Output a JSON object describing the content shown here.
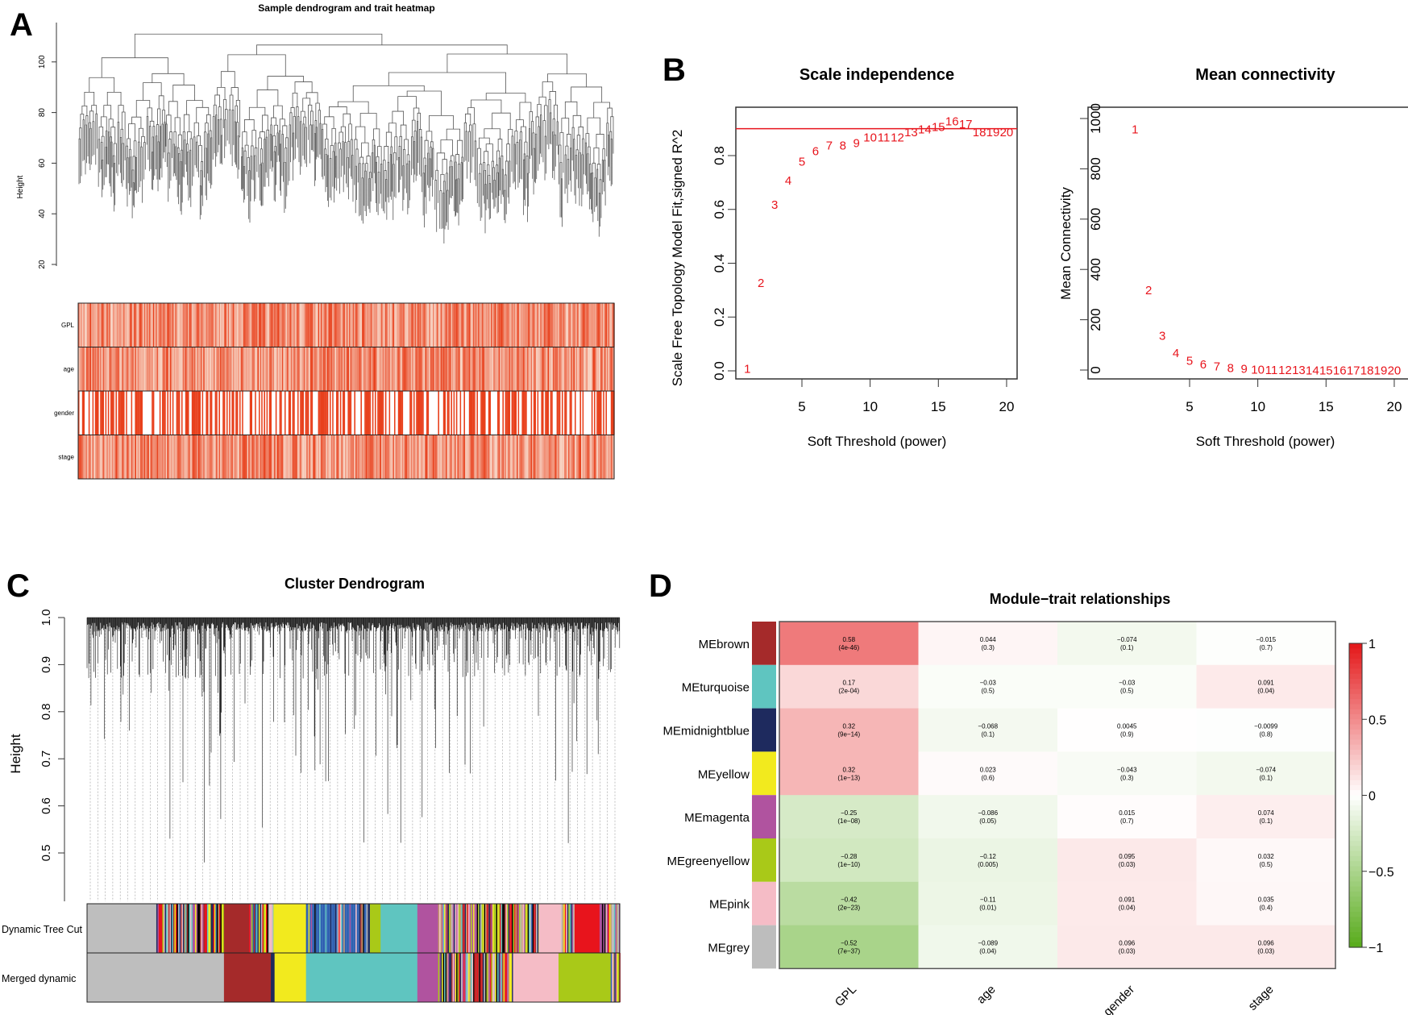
{
  "panel_labels": [
    "A",
    "B",
    "C",
    "D"
  ],
  "chart_data": [
    {
      "type": "dendrogram-heatmap",
      "title": "Sample dendrogram and trait heatmap",
      "ylabel": "Height",
      "yticks": [
        "20",
        "40",
        "60",
        "80",
        "100"
      ],
      "ylim": [
        15,
        112
      ],
      "trait_rows": [
        "GPL",
        "age",
        "gender",
        "stage"
      ]
    },
    {
      "type": "scatter",
      "title": "Scale independence",
      "xlabel": "Soft Threshold (power)",
      "ylabel": "Scale Free Topology Model Fit,signed R^2",
      "xticks": [
        "5",
        "10",
        "15",
        "20"
      ],
      "yticks": [
        "0.0",
        "0.2",
        "0.4",
        "0.6",
        "0.8"
      ],
      "threshold_line": 0.9,
      "x": [
        1,
        2,
        3,
        4,
        5,
        6,
        7,
        8,
        9,
        10,
        11,
        12,
        13,
        14,
        15,
        16,
        17,
        18,
        19,
        20
      ],
      "y": [
        0.01,
        0.33,
        0.62,
        0.71,
        0.78,
        0.82,
        0.84,
        0.84,
        0.85,
        0.87,
        0.87,
        0.87,
        0.89,
        0.9,
        0.91,
        0.93,
        0.92,
        0.89,
        0.89,
        0.89
      ],
      "point_color": "#e8141c"
    },
    {
      "type": "scatter",
      "title": "Mean connectivity",
      "xlabel": "Soft Threshold (power)",
      "ylabel": "Mean Connectivity",
      "xticks": [
        "5",
        "10",
        "15",
        "20"
      ],
      "yticks": [
        "0",
        "200",
        "400",
        "600",
        "800",
        "1000"
      ],
      "x": [
        1,
        2,
        3,
        4,
        5,
        6,
        7,
        8,
        9,
        10,
        11,
        12,
        13,
        14,
        15,
        16,
        17,
        18,
        19,
        20
      ],
      "y": [
        960,
        320,
        140,
        70,
        40,
        25,
        18,
        12,
        8,
        5,
        4,
        3,
        3,
        2,
        2,
        2,
        1,
        1,
        1,
        1
      ],
      "point_color": "#e8141c"
    },
    {
      "type": "dendrogram",
      "title": "Cluster Dendrogram",
      "ylabel": "Height",
      "yticks": [
        "0.5",
        "0.6",
        "0.7",
        "0.8",
        "0.9",
        "1.0"
      ],
      "color_rows": [
        {
          "label": "Dynamic Tree Cut",
          "segments": [
            {
              "color": "grey",
              "frac": 0.13
            },
            {
              "color": "mixed",
              "frac": 0.127
            },
            {
              "color": "brown",
              "frac": 0.047
            },
            {
              "color": "mixed",
              "frac": 0.046
            },
            {
              "color": "yellow",
              "frac": 0.061
            },
            {
              "color": "mixed-blue",
              "frac": 0.12
            },
            {
              "color": "greenyellow",
              "frac": 0.02
            },
            {
              "color": "turquoise",
              "frac": 0.069
            },
            {
              "color": "magenta",
              "frac": 0.039
            },
            {
              "color": "mixed",
              "frac": 0.189
            },
            {
              "color": "pink",
              "frac": 0.042
            },
            {
              "color": "mixed",
              "frac": 0.025
            },
            {
              "color": "red",
              "frac": 0.047
            },
            {
              "color": "mixed",
              "frac": 0.038
            }
          ]
        },
        {
          "label": "Merged dynamic",
          "segments": [
            {
              "color": "grey",
              "frac": 0.257
            },
            {
              "color": "brown",
              "frac": 0.088
            },
            {
              "color": "midnightblue",
              "frac": 0.007
            },
            {
              "color": "yellow",
              "frac": 0.059
            },
            {
              "color": "turquoise",
              "frac": 0.209
            },
            {
              "color": "magenta",
              "frac": 0.039
            },
            {
              "color": "mixed",
              "frac": 0.142
            },
            {
              "color": "pink",
              "frac": 0.084
            },
            {
              "color": "greenyellow",
              "frac": 0.098
            },
            {
              "color": "mixed",
              "frac": 0.017
            }
          ]
        }
      ]
    },
    {
      "type": "heatmap",
      "title": "Module−trait relationships",
      "columns": [
        "GPL",
        "age",
        "gender",
        "stage"
      ],
      "rows": [
        {
          "module": "MEbrown",
          "color": "#a52a2a",
          "cells": [
            [
              "0.58",
              "(4e-46)"
            ],
            [
              "0.044",
              "(0.3)"
            ],
            [
              "−0.074",
              "(0.1)"
            ],
            [
              "−0.015",
              "(0.7)"
            ]
          ],
          "values": [
            0.58,
            0.044,
            -0.074,
            -0.015
          ]
        },
        {
          "module": "MEturquoise",
          "color": "#5fc5c0",
          "cells": [
            [
              "0.17",
              "(2e-04)"
            ],
            [
              "−0.03",
              "(0.5)"
            ],
            [
              "−0.03",
              "(0.5)"
            ],
            [
              "0.091",
              "(0.04)"
            ]
          ],
          "values": [
            0.17,
            -0.03,
            -0.03,
            0.091
          ]
        },
        {
          "module": "MEmidnightblue",
          "color": "#1e2a5e",
          "cells": [
            [
              "0.32",
              "(9e−14)"
            ],
            [
              "−0.068",
              "(0.1)"
            ],
            [
              "0.0045",
              "(0.9)"
            ],
            [
              "−0.0099",
              "(0.8)"
            ]
          ],
          "values": [
            0.32,
            -0.068,
            0.0045,
            -0.0099
          ]
        },
        {
          "module": "MEyellow",
          "color": "#f2ea1e",
          "cells": [
            [
              "0.32",
              "(1e−13)"
            ],
            [
              "0.023",
              "(0.6)"
            ],
            [
              "−0.043",
              "(0.3)"
            ],
            [
              "−0.074",
              "(0.1)"
            ]
          ],
          "values": [
            0.32,
            0.023,
            -0.043,
            -0.074
          ]
        },
        {
          "module": "MEmagenta",
          "color": "#b0539f",
          "cells": [
            [
              "−0.25",
              "(1e−08)"
            ],
            [
              "−0.086",
              "(0.05)"
            ],
            [
              "0.015",
              "(0.7)"
            ],
            [
              "0.074",
              "(0.1)"
            ]
          ],
          "values": [
            -0.25,
            -0.086,
            0.015,
            0.074
          ]
        },
        {
          "module": "MEgreenyellow",
          "color": "#a9c918",
          "cells": [
            [
              "−0.28",
              "(1e−10)"
            ],
            [
              "−0.12",
              "(0.005)"
            ],
            [
              "0.095",
              "(0.03)"
            ],
            [
              "0.032",
              "(0.5)"
            ]
          ],
          "values": [
            -0.28,
            -0.12,
            0.095,
            0.032
          ]
        },
        {
          "module": "MEpink",
          "color": "#f5bcc6",
          "cells": [
            [
              "−0.42",
              "(2e−23)"
            ],
            [
              "−0.11",
              "(0.01)"
            ],
            [
              "0.091",
              "(0.04)"
            ],
            [
              "0.035",
              "(0.4)"
            ]
          ],
          "values": [
            -0.42,
            -0.11,
            0.091,
            0.035
          ]
        },
        {
          "module": "MEgrey",
          "color": "#bdbdbd",
          "cells": [
            [
              "−0.52",
              "(7e−37)"
            ],
            [
              "−0.089",
              "(0.04)"
            ],
            [
              "0.096",
              "(0.03)"
            ],
            [
              "0.096",
              "(0.03)"
            ]
          ],
          "values": [
            -0.52,
            -0.089,
            0.096,
            0.096
          ]
        }
      ],
      "legend_ticks": [
        "1",
        "0.5",
        "0",
        "−0.5",
        "−1"
      ],
      "color_high": "#e41a1c",
      "color_low": "#5aac1e"
    }
  ]
}
